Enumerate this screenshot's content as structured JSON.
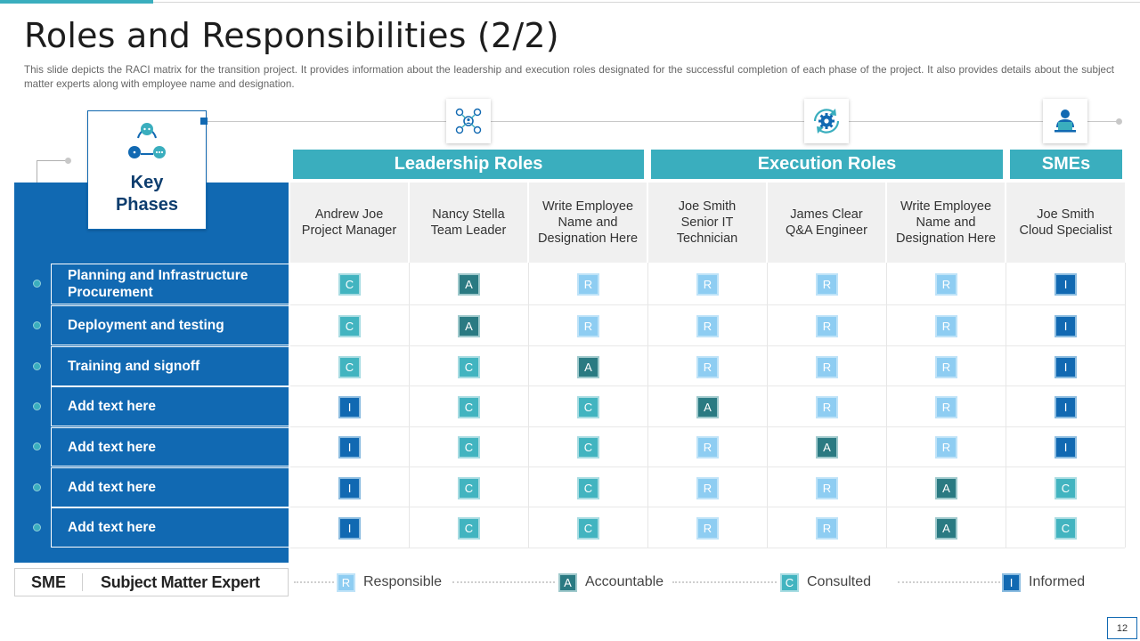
{
  "slide": {
    "title": "Roles and Responsibilities (2/2)",
    "subtitle": "This slide depicts the RACI matrix for the transition project. It provides  information  about the leadership and execution roles designated for the successful completion of each phase of the project. It also provides details about the subject matter experts along with employee name and designation.",
    "page_number": "12"
  },
  "icons": {
    "leadership": "people-network-icon",
    "execution": "gear-cycle-icon",
    "smes": "person-laptop-icon",
    "key_phases": "people-group-icon"
  },
  "key_phases": {
    "title": "Key Phases"
  },
  "groups": [
    {
      "label": "Leadership Roles"
    },
    {
      "label": "Execution Roles"
    },
    {
      "label": "SMEs"
    }
  ],
  "columns": [
    {
      "name": "Andrew Joe",
      "role": "Project Manager"
    },
    {
      "name": "Nancy Stella",
      "role": "Team Leader"
    },
    {
      "name": "Write Employee Name and",
      "role": "Designation Here"
    },
    {
      "name": "Joe Smith Senior IT",
      "role": "Technician"
    },
    {
      "name": "James Clear",
      "role": "Q&A Engineer"
    },
    {
      "name": "Write Employee Name and",
      "role": "Designation Here"
    },
    {
      "name": "Joe Smith",
      "role": "Cloud Specialist"
    }
  ],
  "phases": [
    {
      "label": "Planning and Infrastructure Procurement",
      "values": [
        "C",
        "A",
        "R",
        "R",
        "R",
        "R",
        "I"
      ]
    },
    {
      "label": "Deployment and testing",
      "values": [
        "C",
        "A",
        "R",
        "R",
        "R",
        "R",
        "I"
      ]
    },
    {
      "label": "Training and signoff",
      "values": [
        "C",
        "C",
        "A",
        "R",
        "R",
        "R",
        "I"
      ]
    },
    {
      "label": "Add text here",
      "values": [
        "I",
        "C",
        "C",
        "A",
        "R",
        "R",
        "I"
      ]
    },
    {
      "label": "Add text here",
      "values": [
        "I",
        "C",
        "C",
        "R",
        "A",
        "R",
        "I"
      ]
    },
    {
      "label": "Add text here",
      "values": [
        "I",
        "C",
        "C",
        "R",
        "R",
        "A",
        "C"
      ]
    },
    {
      "label": "Add text here",
      "values": [
        "I",
        "C",
        "C",
        "R",
        "R",
        "A",
        "C"
      ]
    }
  ],
  "legend": {
    "sme_abbr": "SME",
    "sme_full": "Subject Matter Expert",
    "items": [
      {
        "code": "R",
        "label": "Responsible"
      },
      {
        "code": "A",
        "label": "Accountable"
      },
      {
        "code": "C",
        "label": "Consulted"
      },
      {
        "code": "I",
        "label": "Informed"
      }
    ]
  },
  "colors": {
    "teal": "#3aaebe",
    "blue": "#1169b2",
    "responsible": "#8ecdf2",
    "accountable": "#2a7a82",
    "consulted": "#42b4c0",
    "informed": "#1169b2"
  }
}
